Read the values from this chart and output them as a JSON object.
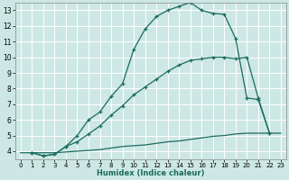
{
  "xlabel": "Humidex (Indice chaleur)",
  "bg_color": "#cde8e4",
  "line_color": "#1a6b5e",
  "grid_color": "#b8d8d4",
  "xlim": [
    -0.5,
    23.5
  ],
  "ylim": [
    3.5,
    13.5
  ],
  "xticks": [
    0,
    1,
    2,
    3,
    4,
    5,
    6,
    7,
    8,
    9,
    10,
    11,
    12,
    13,
    14,
    15,
    16,
    17,
    18,
    19,
    20,
    21,
    22,
    23
  ],
  "yticks": [
    4,
    5,
    6,
    7,
    8,
    9,
    10,
    11,
    12,
    13
  ],
  "line1_x": [
    1,
    2,
    3,
    4,
    5,
    6,
    7,
    8,
    9,
    10,
    11,
    12,
    13,
    14,
    15,
    16,
    17,
    18,
    19,
    20,
    21,
    22
  ],
  "line1_y": [
    3.9,
    3.7,
    3.8,
    4.3,
    5.0,
    6.0,
    6.5,
    7.5,
    8.3,
    10.5,
    11.8,
    12.6,
    13.0,
    13.25,
    13.5,
    13.0,
    12.8,
    12.75,
    11.2,
    7.4,
    7.3,
    5.15
  ],
  "line2_x": [
    1,
    2,
    3,
    4,
    5,
    6,
    7,
    8,
    9,
    10,
    11,
    12,
    13,
    14,
    15,
    16,
    17,
    18,
    19,
    20,
    21,
    22
  ],
  "line2_y": [
    3.9,
    3.7,
    3.8,
    4.3,
    4.6,
    5.1,
    5.6,
    6.3,
    6.9,
    7.6,
    8.1,
    8.6,
    9.1,
    9.5,
    9.8,
    9.9,
    10.0,
    10.0,
    9.9,
    10.0,
    7.4,
    5.15
  ],
  "line3_x": [
    0,
    1,
    2,
    3,
    4,
    5,
    6,
    7,
    8,
    9,
    10,
    11,
    12,
    13,
    14,
    15,
    16,
    17,
    18,
    19,
    20,
    21,
    22,
    23
  ],
  "line3_y": [
    3.9,
    3.9,
    3.9,
    3.9,
    3.95,
    4.0,
    4.05,
    4.1,
    4.2,
    4.3,
    4.35,
    4.4,
    4.5,
    4.6,
    4.65,
    4.75,
    4.85,
    4.95,
    5.0,
    5.1,
    5.15,
    5.15,
    5.15,
    5.15
  ]
}
